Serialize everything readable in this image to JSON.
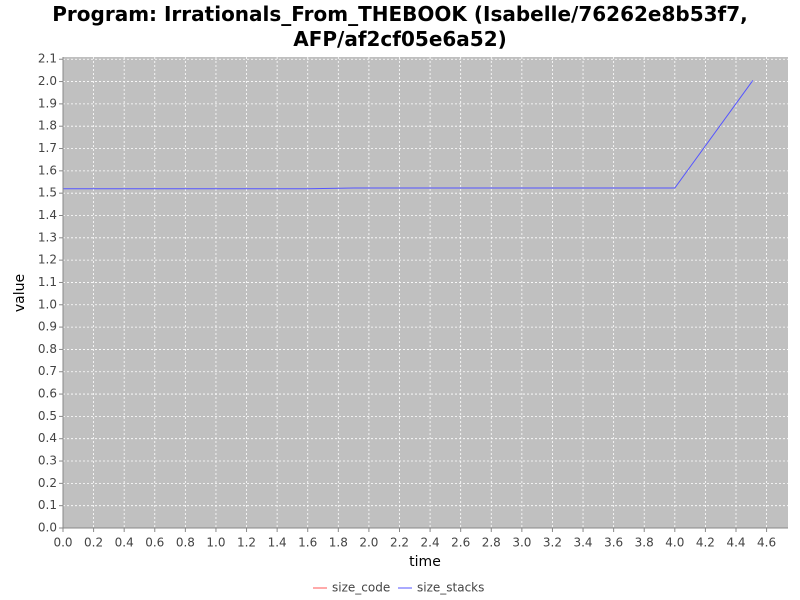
{
  "chart_data": {
    "type": "line",
    "title": "Program: Irrationals_From_THEBOOK (Isabelle/76262e8b53f7, AFP/af2cf05e6a52)",
    "x_label": "time",
    "y_label": "value",
    "x": [
      0,
      1.6,
      1.9,
      4.0,
      4.51
    ],
    "series": [
      {
        "name": "size_code",
        "color": "#ff5555",
        "values": [
          0,
          0,
          0,
          0,
          0
        ]
      },
      {
        "name": "size_stacks",
        "color": "#5555ff",
        "values": [
          1.52,
          1.52,
          1.523,
          1.523,
          2.005
        ]
      }
    ],
    "xlim": [
      0,
      4.74
    ],
    "ylim": [
      0,
      2.11
    ],
    "xticks": [
      {
        "value": 0,
        "label": "0.0"
      },
      0.2,
      0.4,
      0.6,
      0.8,
      {
        "value": 1,
        "label": "1.0"
      },
      1.2,
      1.4,
      1.6,
      1.8,
      {
        "value": 2,
        "label": "2.0"
      },
      2.2,
      2.4,
      2.6,
      2.8,
      {
        "value": 3,
        "label": "3.0"
      },
      3.2,
      3.4,
      3.6,
      3.8,
      {
        "value": 4,
        "label": "4.0"
      },
      4.2,
      4.4,
      4.6
    ],
    "yticks": [
      {
        "value": 0,
        "label": "0.0"
      },
      0.1,
      0.2,
      0.3,
      0.4,
      0.5,
      0.6,
      0.7,
      0.8,
      0.9,
      {
        "value": 1,
        "label": "1.0"
      },
      1.1,
      1.2,
      1.3,
      1.4,
      1.5,
      1.6,
      1.7,
      1.8,
      1.9,
      {
        "value": 2,
        "label": "2.0"
      },
      2.1
    ],
    "grid": true,
    "legend": "bottom"
  }
}
